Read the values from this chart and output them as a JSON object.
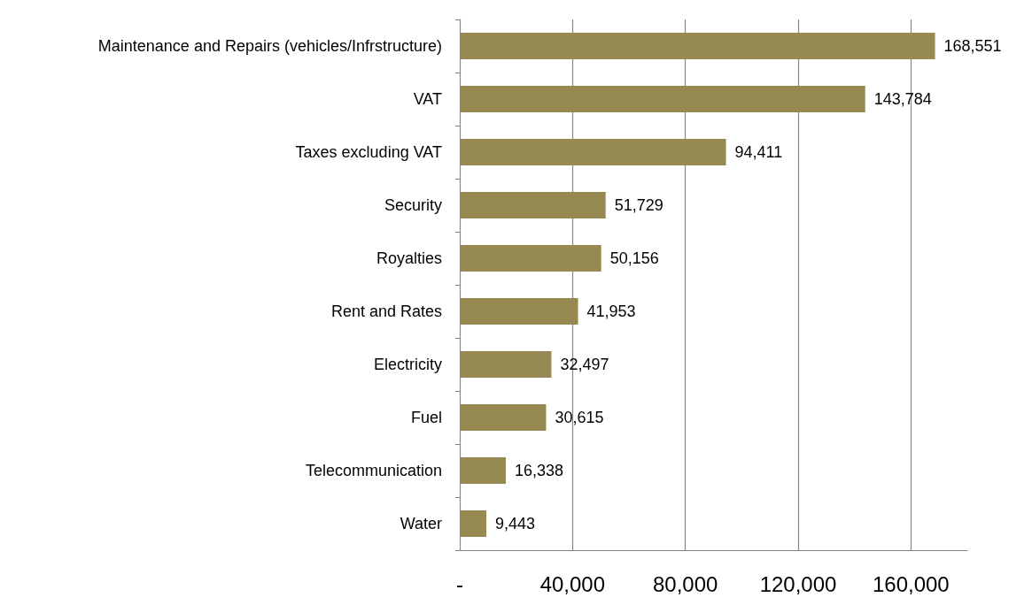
{
  "chart_data": {
    "type": "bar",
    "orientation": "horizontal",
    "categories": [
      "Maintenance and Repairs (vehicles/Infrstructure)",
      "VAT",
      "Taxes excluding VAT",
      "Security",
      "Royalties",
      "Rent and Rates",
      "Electricity",
      "Fuel",
      "Telecommunication",
      "Water"
    ],
    "values": [
      168551,
      143784,
      94411,
      51729,
      50156,
      41953,
      32497,
      30615,
      16338,
      9443
    ],
    "color": "#968a52",
    "xlim": [
      0,
      180000
    ],
    "xticks": [
      {
        "value": 0,
        "label": "-"
      },
      {
        "value": 40000,
        "label": "40,000"
      },
      {
        "value": 80000,
        "label": "80,000"
      },
      {
        "value": 120000,
        "label": "120,000"
      },
      {
        "value": 160000,
        "label": "160,000"
      }
    ],
    "value_labels": [
      "168,551",
      "143,784",
      "94,411",
      "51,729",
      "50,156",
      "41,953",
      "32,497",
      "30,615",
      "16,338",
      "9,443"
    ],
    "grid": "x"
  }
}
